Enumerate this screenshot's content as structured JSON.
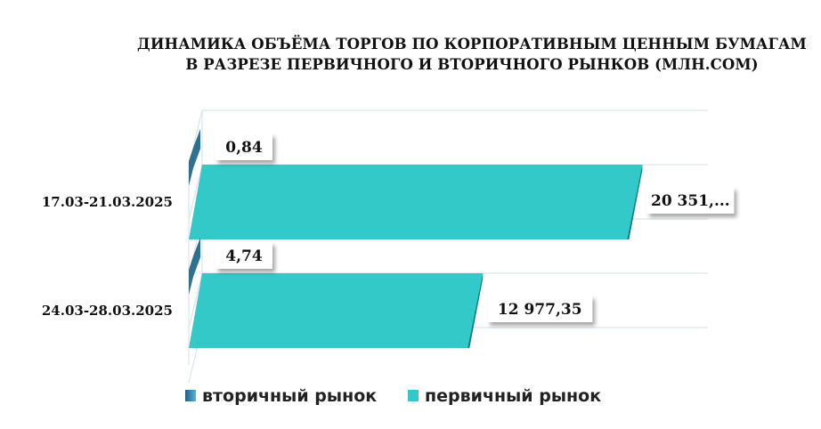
{
  "chart_data": {
    "type": "bar",
    "orientation": "horizontal",
    "title_lines": [
      "ДИНАМИКА ОБЪЁМА ТОРГОВ ПО КОРПОРАТИВНЫМ ЦЕННЫМ БУМАГАМ",
      "В РАЗРЕЗЕ ПЕРВИЧНОГО И ВТОРИЧНОГО РЫНКОВ  (МЛН.СОМ)"
    ],
    "categories": [
      "17.03-21.03.2025",
      "24.03-28.03.2025"
    ],
    "series": [
      {
        "name": "вторичный рынок",
        "values": [
          0.84,
          4.74
        ],
        "labels": [
          "0,84",
          "4,74"
        ],
        "color": "#2f6f8f"
      },
      {
        "name": "первичный рынок",
        "values": [
          20351,
          12977.35
        ],
        "labels": [
          "20 351,...",
          "12 977,35"
        ],
        "color": "#33c9c9"
      }
    ],
    "xlim": [
      0,
      24000
    ],
    "grid": true,
    "legend": "bottom",
    "style": "3d"
  }
}
